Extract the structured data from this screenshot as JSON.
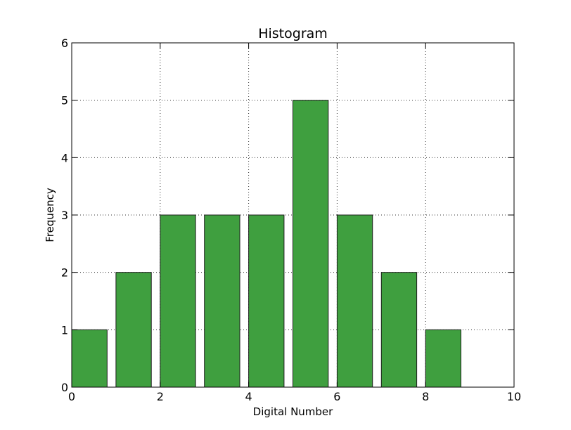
{
  "chart_data": {
    "type": "bar",
    "title": "Histogram",
    "xlabel": "Digital Number",
    "ylabel": "Frequency",
    "x_bin_starts": [
      0,
      1,
      2,
      3,
      4,
      5,
      6,
      7,
      8,
      9
    ],
    "bin_width": 0.8,
    "values": [
      1,
      2,
      3,
      3,
      3,
      5,
      3,
      2,
      1,
      0
    ],
    "xlim": [
      0,
      10
    ],
    "ylim": [
      0,
      6
    ],
    "x_ticks": [
      "0",
      "2",
      "4",
      "6",
      "8",
      "10"
    ],
    "y_ticks": [
      "0",
      "1",
      "2",
      "3",
      "4",
      "5",
      "6"
    ],
    "grid": true,
    "colors": {
      "bar_fill": "#3f9f3f",
      "bar_edge": "#1e1e1e",
      "axes": "#000000"
    }
  }
}
